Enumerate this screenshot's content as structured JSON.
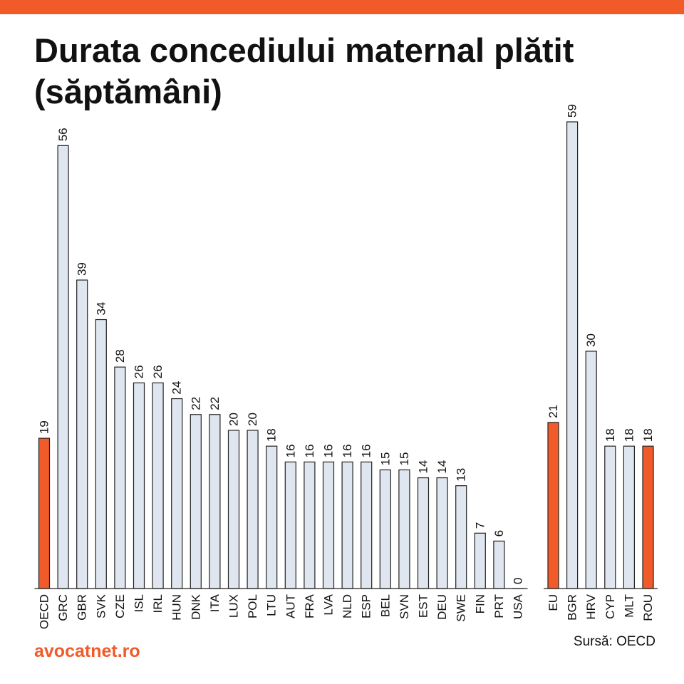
{
  "title": "Durata concediului maternal plătit (săptămâni)",
  "brand": "avocatnet.ro",
  "source": "Sursă: OECD",
  "colors": {
    "accent": "#F15A29",
    "bar": "#DFE6F0",
    "bar_stroke": "#222222"
  },
  "chart_data": {
    "type": "bar",
    "title": "Durata concediului maternal plătit (săptămâni)",
    "xlabel": "",
    "ylabel": "",
    "ylim": [
      0,
      59
    ],
    "grid": false,
    "legend": "none",
    "groups": [
      {
        "categories": [
          "OECD",
          "GRC",
          "GBR",
          "SVK",
          "CZE",
          "ISL",
          "IRL",
          "HUN",
          "DNK",
          "ITA",
          "LUX",
          "POL",
          "LTU",
          "AUT",
          "FRA",
          "LVA",
          "NLD",
          "ESP",
          "BEL",
          "SVN",
          "EST",
          "DEU",
          "SWE",
          "FIN",
          "PRT",
          "USA"
        ],
        "values": [
          19,
          56,
          39,
          34,
          28,
          26,
          26,
          24,
          22,
          22,
          20,
          20,
          18,
          16,
          16,
          16,
          16,
          16,
          15,
          15,
          14,
          14,
          13,
          7,
          6,
          0
        ],
        "highlighted": [
          "OECD"
        ]
      },
      {
        "categories": [
          "EU",
          "BGR",
          "HRV",
          "CYP",
          "MLT",
          "ROU"
        ],
        "values": [
          21,
          59,
          30,
          18,
          18,
          18
        ],
        "highlighted": [
          "EU",
          "ROU"
        ]
      }
    ]
  }
}
